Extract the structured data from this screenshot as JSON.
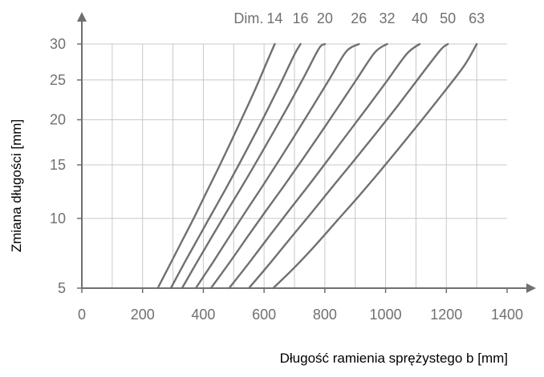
{
  "chart_data": {
    "type": "line",
    "title": "",
    "xlabel": "Długość ramienia sprężystego b [mm]",
    "ylabel": "Zmiana długości [mm]",
    "legend_prefix": "Dim.",
    "xlim": [
      0,
      1400
    ],
    "ylim": [
      5,
      30
    ],
    "y_scale": "sqrt",
    "x_ticks": [
      0,
      200,
      400,
      600,
      800,
      1000,
      1200,
      1400
    ],
    "x_tick_labels": [
      "0",
      "200",
      "400",
      "600",
      "800",
      "1000",
      "1200",
      "1400"
    ],
    "x_gridlines": [
      0,
      100,
      200,
      300,
      400,
      500,
      600,
      700,
      800,
      900,
      1000,
      1100,
      1200,
      1300
    ],
    "y_ticks": [
      5,
      10,
      15,
      20,
      25,
      30
    ],
    "y_tick_labels": [
      "5",
      "10",
      "15",
      "20",
      "25",
      "30"
    ],
    "grid": true,
    "line_color": "#707070",
    "grid_color": "#c8c8c8",
    "series": [
      {
        "name": "14",
        "x": [
          250,
          290,
          330,
          370,
          410,
          450,
          490,
          530,
          570,
          610,
          635
        ],
        "y": [
          5,
          6.5,
          8.2,
          10.1,
          12.3,
          14.7,
          17.4,
          20.4,
          23.7,
          27.5,
          30
        ]
      },
      {
        "name": "16",
        "x": [
          293,
          340,
          385,
          430,
          475,
          520,
          565,
          610,
          655,
          700,
          720
        ],
        "y": [
          5,
          6.7,
          8.5,
          10.5,
          12.7,
          15.2,
          18.0,
          21.1,
          24.6,
          28.5,
          30
        ]
      },
      {
        "name": "20",
        "x": [
          330,
          380,
          430,
          480,
          530,
          580,
          630,
          680,
          730,
          780,
          800
        ],
        "y": [
          5,
          6.7,
          8.6,
          10.7,
          13.0,
          15.6,
          18.5,
          21.7,
          25.3,
          29.3,
          30
        ]
      },
      {
        "name": "26",
        "x": [
          375,
          430,
          485,
          540,
          595,
          650,
          705,
          760,
          815,
          870,
          912
        ],
        "y": [
          5,
          6.6,
          8.5,
          10.6,
          12.9,
          15.5,
          18.4,
          21.6,
          25.1,
          28.9,
          30
        ]
      },
      {
        "name": "32",
        "x": [
          425,
          485,
          545,
          605,
          665,
          725,
          785,
          845,
          905,
          965,
          1005
        ],
        "y": [
          5,
          6.6,
          8.5,
          10.6,
          12.9,
          15.5,
          18.4,
          21.6,
          25.1,
          28.8,
          30
        ]
      },
      {
        "name": "40",
        "x": [
          485,
          550,
          615,
          680,
          745,
          810,
          875,
          940,
          1005,
          1070,
          1112
        ],
        "y": [
          5,
          6.6,
          8.5,
          10.6,
          12.9,
          15.5,
          18.4,
          21.5,
          24.9,
          28.6,
          30
        ]
      },
      {
        "name": "50",
        "x": [
          550,
          620,
          690,
          760,
          830,
          900,
          970,
          1040,
          1110,
          1180,
          1205
        ],
        "y": [
          5,
          6.6,
          8.5,
          10.6,
          13.0,
          15.6,
          18.5,
          21.7,
          25.3,
          29.1,
          30
        ]
      },
      {
        "name": "63",
        "x": [
          630,
          700,
          770,
          840,
          910,
          980,
          1050,
          1120,
          1190,
          1260,
          1300
        ],
        "y": [
          5,
          6.3,
          7.9,
          9.8,
          11.9,
          14.3,
          17.0,
          20.0,
          23.3,
          27.0,
          30
        ]
      }
    ]
  }
}
